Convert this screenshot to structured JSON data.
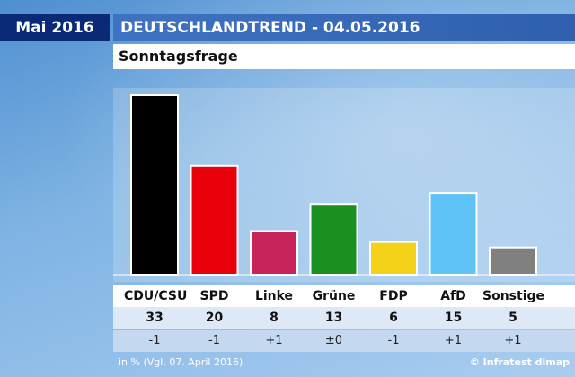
{
  "header": {
    "date_badge": "Mai 2016",
    "title": "DEUTSCHLANDTREND - 04.05.2016",
    "subtitle": "Sonntagsfrage"
  },
  "footnote": "in % (Vgl. 07. April 2016)",
  "source": "© Infratest dimap",
  "chart_data": {
    "type": "bar",
    "title": "Sonntagsfrage",
    "xlabel": "",
    "ylabel": "",
    "ylim": [
      0,
      33
    ],
    "grid": false,
    "categories": [
      "CDU/CSU",
      "SPD",
      "Linke",
      "Grüne",
      "FDP",
      "AfD",
      "Sonstige"
    ],
    "values": [
      33,
      20,
      8,
      13,
      6,
      15,
      5
    ],
    "value_labels": [
      "33",
      "20",
      "8",
      "13",
      "6",
      "15",
      "5"
    ],
    "changes": [
      "-1",
      "-1",
      "+1",
      "±0",
      "-1",
      "+1",
      "+1"
    ],
    "colors": [
      "#000000",
      "#e8000b",
      "#c8245c",
      "#1a9020",
      "#f5d21a",
      "#5fc3f5",
      "#808080"
    ],
    "bar_outline": "#ffffff"
  }
}
